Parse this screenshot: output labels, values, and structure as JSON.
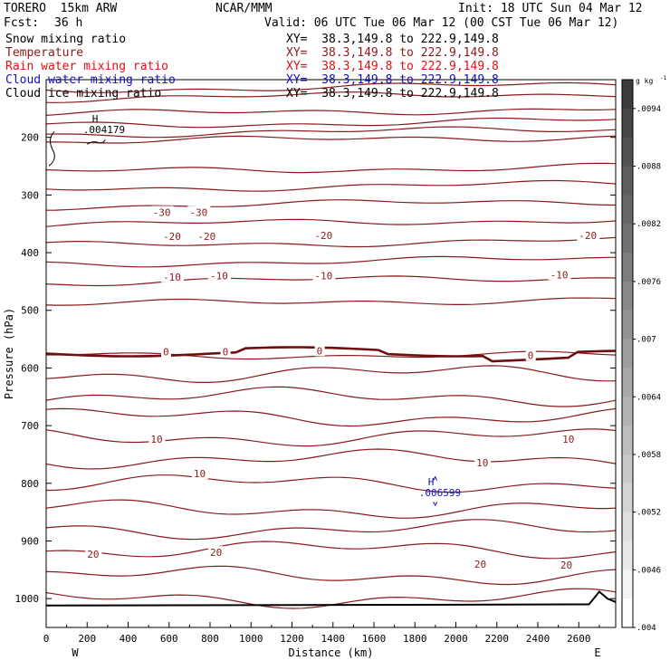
{
  "header": {
    "model": "TORERO  15km ARW",
    "center": "NCAR/MMM",
    "init": "Init: 18 UTC Sun 04 Mar 12",
    "fcst_label": "Fcst:",
    "fcst_value": "36 h",
    "valid": "Valid: 06 UTC Tue 06 Mar 12 (00 CST Tue 06 Mar 12)"
  },
  "fields": [
    {
      "label": "Snow mixing ratio",
      "xy": "XY=  38.3,149.8 to 222.9,149.8",
      "color": "#000000"
    },
    {
      "label": "Temperature",
      "xy": "XY=  38.3,149.8 to 222.9,149.8",
      "color": "#8b1a1a"
    },
    {
      "label": "Rain water mixing ratio",
      "xy": "XY=  38.3,149.8 to 222.9,149.8",
      "color": "#e01010"
    },
    {
      "label": "Cloud water mixing ratio",
      "xy": "XY=  38.3,149.8 to 222.9,149.8",
      "color": "#1010c0"
    },
    {
      "label": "Cloud ice mixing ratio",
      "xy": "XY=  38.3,149.8 to 222.9,149.8",
      "color": "#000000"
    }
  ],
  "chart_data": {
    "type": "cross-section contour",
    "xlabel": "Distance (km)",
    "ylabel": "Pressure (hPa)",
    "xlim": [
      0,
      2780
    ],
    "ylim": [
      100,
      1050
    ],
    "x_ticks": [
      0,
      200,
      400,
      600,
      800,
      1000,
      1200,
      1400,
      1600,
      1800,
      2000,
      2200,
      2400,
      2600
    ],
    "y_ticks": [
      200,
      300,
      400,
      500,
      600,
      700,
      800,
      900,
      1000
    ],
    "end_labels": {
      "left": "W",
      "right": "E"
    },
    "colorbar": {
      "unit": "g kg",
      "unit_exp": "-1",
      "ticks": [
        ".004",
        ".0046",
        ".0052",
        ".0058",
        ".0064",
        ".007",
        ".0076",
        ".0082",
        ".0088",
        ".0094"
      ],
      "range": [
        0.004,
        0.0097
      ]
    },
    "temperature_labels": [
      {
        "text": "-30",
        "x": 520,
        "p": 330
      },
      {
        "text": "-30",
        "x": 700,
        "p": 330
      },
      {
        "text": "-20",
        "x": 570,
        "p": 372
      },
      {
        "text": "-20",
        "x": 740,
        "p": 372
      },
      {
        "text": "-20",
        "x": 1310,
        "p": 370
      },
      {
        "text": "-20",
        "x": 2600,
        "p": 370
      },
      {
        "text": "-10",
        "x": 570,
        "p": 442
      },
      {
        "text": "-10",
        "x": 800,
        "p": 440
      },
      {
        "text": "-10",
        "x": 1310,
        "p": 440
      },
      {
        "text": "-10",
        "x": 2460,
        "p": 438
      },
      {
        "text": "0",
        "x": 570,
        "p": 572
      },
      {
        "text": "0",
        "x": 860,
        "p": 572
      },
      {
        "text": "0",
        "x": 1320,
        "p": 570
      },
      {
        "text": "0",
        "x": 2350,
        "p": 578
      },
      {
        "text": "10",
        "x": 510,
        "p": 723
      },
      {
        "text": "10",
        "x": 720,
        "p": 783
      },
      {
        "text": "10",
        "x": 2100,
        "p": 764
      },
      {
        "text": "10",
        "x": 2520,
        "p": 723
      },
      {
        "text": "20",
        "x": 200,
        "p": 923
      },
      {
        "text": "20",
        "x": 800,
        "p": 920
      },
      {
        "text": "20",
        "x": 2090,
        "p": 940
      },
      {
        "text": "20",
        "x": 2510,
        "p": 942
      }
    ],
    "maxima": [
      {
        "text": "H",
        "value": ".004179",
        "x": 180,
        "p": 180
      },
      {
        "text": "H",
        "value": ".006599",
        "x": 1820,
        "p": 810
      }
    ]
  }
}
